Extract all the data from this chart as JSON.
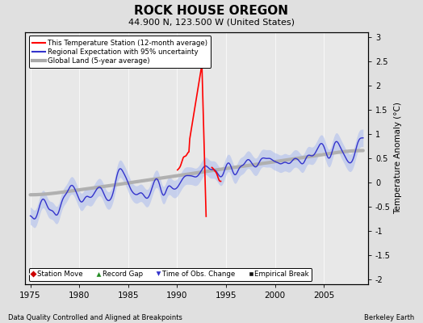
{
  "title": "ROCK HOUSE OREGON",
  "subtitle": "44.900 N, 123.500 W (United States)",
  "ylabel": "Temperature Anomaly (°C)",
  "xlabel_note": "Data Quality Controlled and Aligned at Breakpoints",
  "credit": "Berkeley Earth",
  "xlim": [
    1974.5,
    2009.5
  ],
  "ylim": [
    -2.1,
    3.1
  ],
  "yticks": [
    -2,
    -1.5,
    -1,
    -0.5,
    0,
    0.5,
    1,
    1.5,
    2,
    2.5,
    3
  ],
  "xticks": [
    1975,
    1980,
    1985,
    1990,
    1995,
    2000,
    2005
  ],
  "bg_color": "#e0e0e0",
  "plot_bg_color": "#e8e8e8",
  "legend_items": [
    {
      "label": "This Temperature Station (12-month average)",
      "color": "#ff0000",
      "lw": 1.5
    },
    {
      "label": "Regional Expectation with 95% uncertainty",
      "color": "#3333cc",
      "lw": 1.5
    },
    {
      "label": "Global Land (5-year average)",
      "color": "#aaaaaa",
      "lw": 3
    }
  ],
  "markers": [
    {
      "color": "#cc0000",
      "marker": "D",
      "label": "Station Move"
    },
    {
      "color": "#228B22",
      "marker": "^",
      "label": "Record Gap"
    },
    {
      "color": "#3333cc",
      "marker": "v",
      "label": "Time of Obs. Change"
    },
    {
      "color": "#111111",
      "marker": "s",
      "label": "Empirical Break"
    }
  ]
}
